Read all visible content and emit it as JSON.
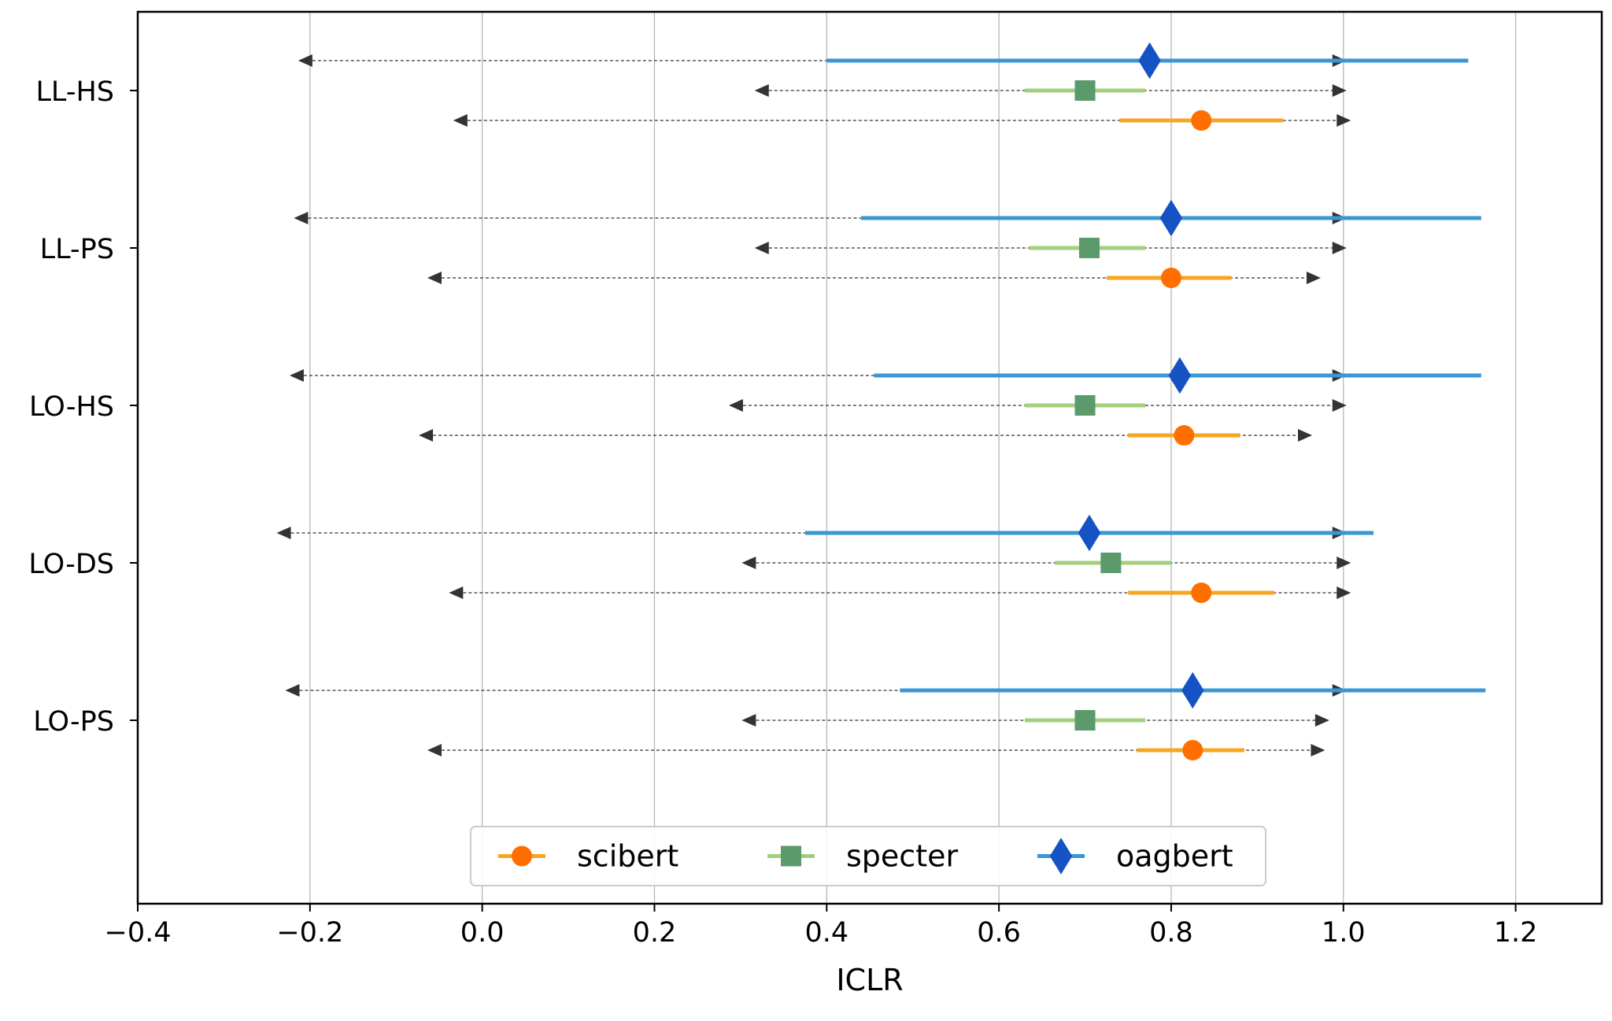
{
  "chart_data": {
    "type": "errorbar",
    "xlabel": "ICLR",
    "xlim": [
      -0.4,
      1.3
    ],
    "x_ticks": [
      "−0.4",
      "−0.2",
      "0.0",
      "0.2",
      "0.4",
      "0.6",
      "0.8",
      "1.0",
      "1.2"
    ],
    "x_tick_values": [
      -0.4,
      -0.2,
      0.0,
      0.2,
      0.4,
      0.6,
      0.8,
      1.0,
      1.2
    ],
    "grid": "vertical",
    "legend_position": "bottom-center",
    "categories": [
      "LL-HS",
      "LL-PS",
      "LO-HS",
      "LO-DS",
      "LO-PS"
    ],
    "series": [
      {
        "name": "scibert",
        "marker": "circle",
        "color": "#ff6f00",
        "bar_color": "#f5a623",
        "points": [
          {
            "category": "LL-HS",
            "value": 0.835,
            "low": 0.74,
            "high": 0.93,
            "arrow_low": -0.03,
            "arrow_high": 1.005
          },
          {
            "category": "LL-PS",
            "value": 0.8,
            "low": 0.725,
            "high": 0.87,
            "arrow_low": -0.06,
            "arrow_high": 0.97
          },
          {
            "category": "LO-HS",
            "value": 0.815,
            "low": 0.75,
            "high": 0.88,
            "arrow_low": -0.07,
            "arrow_high": 0.96
          },
          {
            "category": "LO-DS",
            "value": 0.835,
            "low": 0.75,
            "high": 0.92,
            "arrow_low": -0.035,
            "arrow_high": 1.005
          },
          {
            "category": "LO-PS",
            "value": 0.825,
            "low": 0.76,
            "high": 0.885,
            "arrow_low": -0.06,
            "arrow_high": 0.975
          }
        ]
      },
      {
        "name": "specter",
        "marker": "square",
        "color": "#5a9a6b",
        "bar_color": "#a3cf7e",
        "points": [
          {
            "category": "LL-HS",
            "value": 0.7,
            "low": 0.63,
            "high": 0.77,
            "arrow_low": 0.32,
            "arrow_high": 1.0
          },
          {
            "category": "LL-PS",
            "value": 0.705,
            "low": 0.635,
            "high": 0.77,
            "arrow_low": 0.32,
            "arrow_high": 1.0
          },
          {
            "category": "LO-HS",
            "value": 0.7,
            "low": 0.63,
            "high": 0.77,
            "arrow_low": 0.29,
            "arrow_high": 1.0
          },
          {
            "category": "LO-DS",
            "value": 0.73,
            "low": 0.665,
            "high": 0.8,
            "arrow_low": 0.305,
            "arrow_high": 1.005
          },
          {
            "category": "LO-PS",
            "value": 0.7,
            "low": 0.63,
            "high": 0.77,
            "arrow_low": 0.305,
            "arrow_high": 0.98
          }
        ]
      },
      {
        "name": "oagbert",
        "marker": "diamond",
        "color": "#1553c4",
        "bar_color": "#3a97d4",
        "points": [
          {
            "category": "LL-HS",
            "value": 0.775,
            "low": 0.4,
            "high": 1.145,
            "arrow_low": -0.21,
            "arrow_high": 1.0
          },
          {
            "category": "LL-PS",
            "value": 0.8,
            "low": 0.44,
            "high": 1.16,
            "arrow_low": -0.215,
            "arrow_high": 1.0
          },
          {
            "category": "LO-HS",
            "value": 0.81,
            "low": 0.455,
            "high": 1.16,
            "arrow_low": -0.22,
            "arrow_high": 1.0
          },
          {
            "category": "LO-DS",
            "value": 0.705,
            "low": 0.375,
            "high": 1.035,
            "arrow_low": -0.235,
            "arrow_high": 1.0
          },
          {
            "category": "LO-PS",
            "value": 0.825,
            "low": 0.485,
            "high": 1.165,
            "arrow_low": -0.225,
            "arrow_high": 1.0
          }
        ]
      }
    ]
  }
}
